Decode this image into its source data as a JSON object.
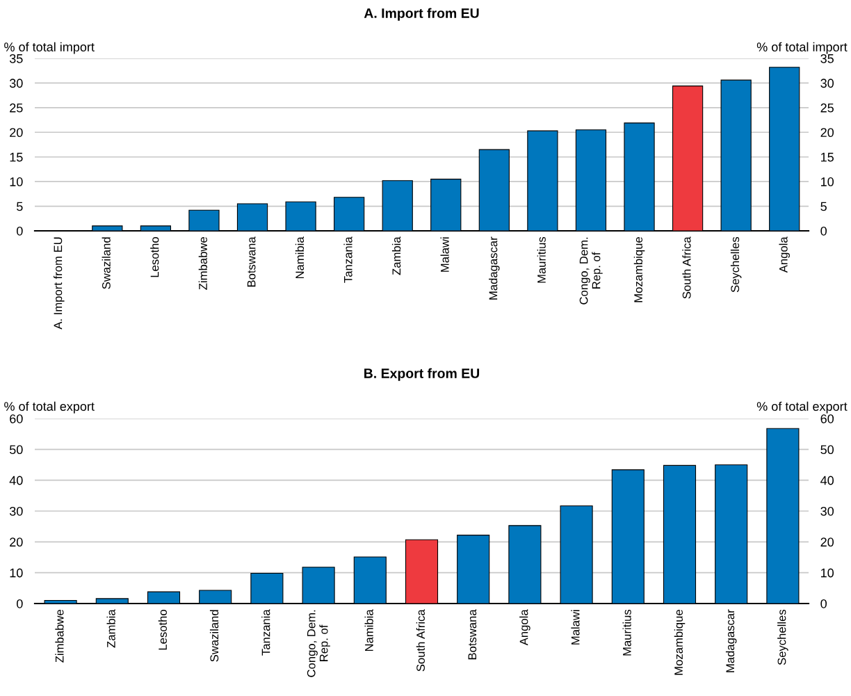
{
  "chart_data": [
    {
      "type": "bar",
      "title": "A. Import from EU",
      "ylabel": "% of total import",
      "y2label": "% of total import",
      "categories": [
        "A. Import from EU",
        "Swaziland",
        "Lesotho",
        "Zimbabwe",
        "Botswana",
        "Namibia",
        "Tanzania",
        "Zambia",
        "Malawi",
        "Madagascar",
        "Mauritius",
        "Congo, Dem.\nRep. of",
        "Mozambique",
        "South Africa",
        "Seychelles",
        "Angola"
      ],
      "values": [
        null,
        1.0,
        1.0,
        4.2,
        5.5,
        5.9,
        6.8,
        10.2,
        10.5,
        16.5,
        20.3,
        20.5,
        21.9,
        29.4,
        30.6,
        33.2
      ],
      "colors": [
        "#0077bd",
        "#0077bd",
        "#0077bd",
        "#0077bd",
        "#0077bd",
        "#0077bd",
        "#0077bd",
        "#0077bd",
        "#0077bd",
        "#0077bd",
        "#0077bd",
        "#0077bd",
        "#0077bd",
        "#ee3a3f",
        "#0077bd",
        "#0077bd"
      ],
      "ylim": [
        0,
        35
      ],
      "yticks": [
        0,
        5,
        10,
        15,
        20,
        25,
        30,
        35
      ],
      "y2lim": [
        0,
        35
      ],
      "y2ticks": [
        0,
        5,
        10,
        15,
        20,
        25,
        30,
        35
      ],
      "grid": "y"
    },
    {
      "type": "bar",
      "title": "B. Export from EU",
      "ylabel": "% of total export",
      "y2label": "% of total export",
      "categories": [
        "Zimbabwe",
        "Zambia",
        "Lesotho",
        "Swaziland",
        "Tanzania",
        "Congo, Dem.\nRep. of",
        "Namibia",
        "South Africa",
        "Botswana",
        "Angola",
        "Malawi",
        "Mauritius",
        "Mozambique",
        "Madagascar",
        "Seychelles"
      ],
      "values": [
        1.0,
        1.6,
        3.8,
        4.3,
        9.8,
        11.8,
        15.1,
        20.7,
        22.2,
        25.3,
        31.7,
        43.4,
        44.8,
        45.0,
        56.8
      ],
      "colors": [
        "#0077bd",
        "#0077bd",
        "#0077bd",
        "#0077bd",
        "#0077bd",
        "#0077bd",
        "#0077bd",
        "#ee3a3f",
        "#0077bd",
        "#0077bd",
        "#0077bd",
        "#0077bd",
        "#0077bd",
        "#0077bd",
        "#0077bd"
      ],
      "ylim": [
        0,
        60
      ],
      "yticks": [
        0,
        10,
        20,
        30,
        40,
        50,
        60
      ],
      "y2lim": [
        0,
        60
      ],
      "y2ticks": [
        0,
        10,
        20,
        30,
        40,
        50,
        60
      ],
      "grid": "y"
    }
  ]
}
